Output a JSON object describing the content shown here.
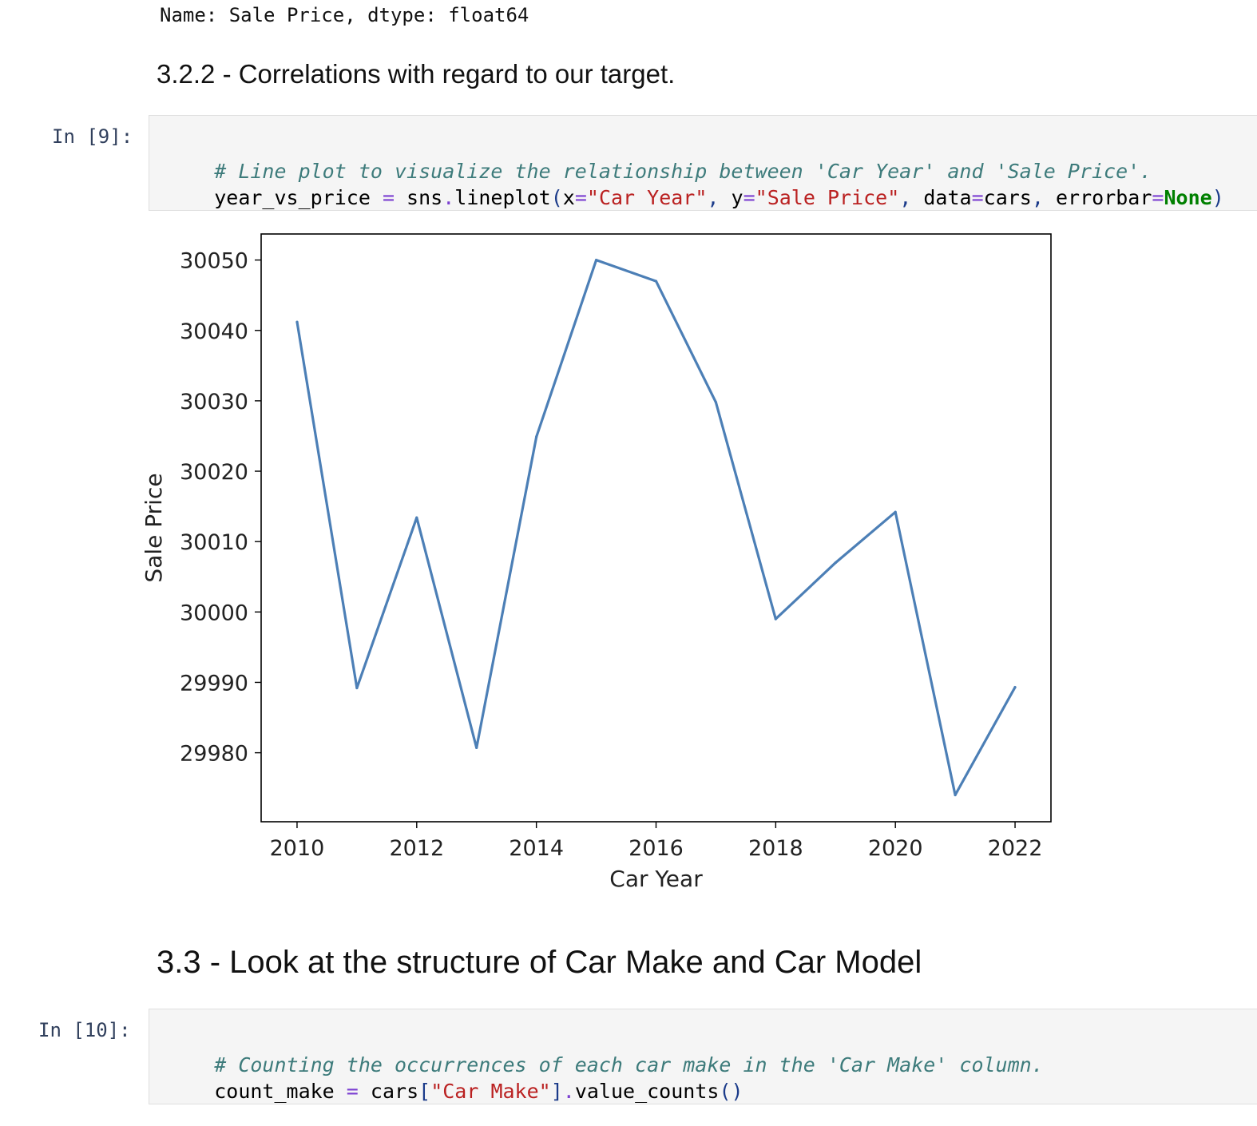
{
  "previous_output": "Name: Sale Price, dtype: float64",
  "section_322_heading": "3.2.2 - Correlations with regard to our target.",
  "cell_9": {
    "prompt": "In [9]:",
    "line1": {
      "comment": "# Line plot to visualize the relationship between 'Car Year' and 'Sale Price'."
    },
    "line2": {
      "t1": "year_vs_price ",
      "t2": "=",
      "t3": " sns",
      "t4": ".",
      "t5": "lineplot",
      "t6": "(",
      "t7": "x",
      "t8": "=",
      "t9": "\"Car Year\"",
      "t10": ",",
      "t11": " y",
      "t12": "=",
      "t13": "\"Sale Price\"",
      "t14": ",",
      "t15": " data",
      "t16": "=",
      "t17": "cars",
      "t18": ",",
      "t19": " errorbar",
      "t20": "=",
      "t21": "None",
      "t22": ")"
    }
  },
  "chart_data": {
    "type": "line",
    "x": [
      2010,
      2011,
      2012,
      2013,
      2014,
      2015,
      2016,
      2017,
      2018,
      2019,
      2020,
      2021,
      2022
    ],
    "series": [
      {
        "values": [
          30041.2,
          29989.2,
          30013.4,
          29980.7,
          30024.9,
          30050.0,
          30047.0,
          30029.8,
          29999.0,
          30007.0,
          30014.2,
          29974.0,
          29989.3
        ],
        "color": "#4c7fb6"
      }
    ],
    "xlabel": "Car Year",
    "ylabel": "Sale Price",
    "xticks": [
      "2010",
      "2012",
      "2014",
      "2016",
      "2018",
      "2020",
      "2022"
    ],
    "yticks": [
      "29980",
      "29990",
      "30000",
      "30010",
      "30020",
      "30030",
      "30040",
      "30050"
    ],
    "xlim": [
      2009.4,
      2022.6
    ],
    "ylim": [
      29970.2,
      30053.7
    ],
    "grid": false
  },
  "section_33_heading": "3.3 - Look at the structure of Car Make and Car Model",
  "cell_10": {
    "prompt": "In [10]:",
    "line1": {
      "comment": "# Counting the occurrences of each car make in the 'Car Make' column."
    },
    "line2": {
      "t1": "count_make ",
      "t2": "=",
      "t3": " cars",
      "t4": "[",
      "t5": "\"Car Make\"",
      "t6": "]",
      "t7": ".",
      "t8": "value_counts",
      "t9": "()"
    }
  }
}
